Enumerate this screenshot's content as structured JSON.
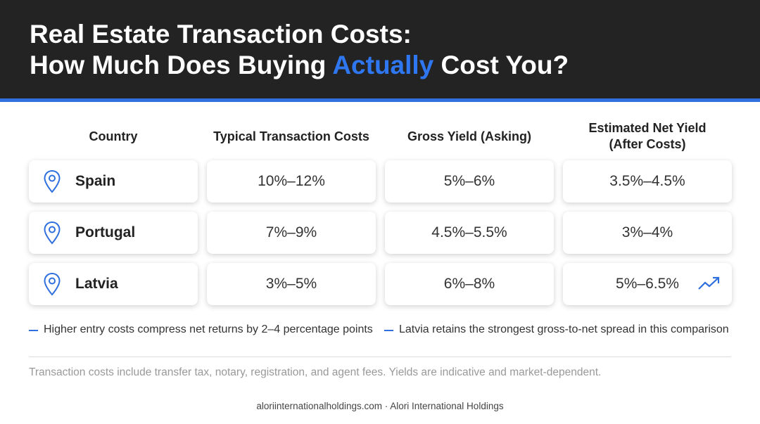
{
  "header": {
    "title_line1": "Real Estate Transaction Costs:",
    "title_line2": [
      "How Much Does Buying",
      "Actually",
      "Cost You?"
    ]
  },
  "table": {
    "columns": [
      "Country",
      "Typical Transaction Costs",
      "Gross Yield (Asking)",
      "Estimated Net Yield (After Costs)"
    ],
    "rows": [
      [
        "Spain",
        "10%–12%",
        "5%–6%",
        "3.5%–4.5%"
      ],
      [
        "Portugal",
        "7%–9%",
        "4.5%–5.5%",
        "3%–4%"
      ],
      [
        "Latvia",
        "3%–5%",
        "6%–8%",
        "5%–6.5%"
      ]
    ]
  },
  "notes": [
    "Higher entry costs compress net returns by 2–4 percentage points",
    "Latvia retains the strongest gross-to-net spread in this comparison"
  ],
  "footnote": "Transaction costs include transfer tax, notary, registration, and agent fees. Yields are indicative and market-dependent.",
  "footer": "aloriinternationalholdings.com · Alori International Holdings"
}
